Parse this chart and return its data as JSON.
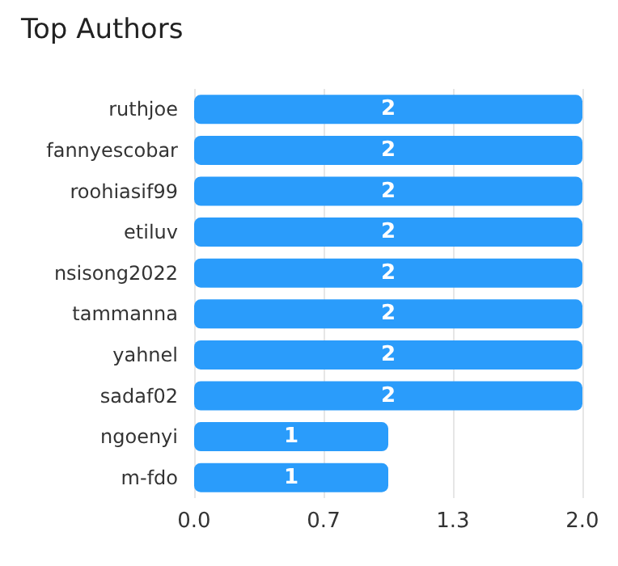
{
  "chart_data": {
    "type": "bar",
    "orientation": "horizontal",
    "title": "Top Authors",
    "categories": [
      "ruthjoe",
      "fannyescobar",
      "roohiasif99",
      "etiluv",
      "nsisong2022",
      "tammanna",
      "yahnel",
      "sadaf02",
      "ngoenyi",
      "m-fdo"
    ],
    "values": [
      2,
      2,
      2,
      2,
      2,
      2,
      2,
      2,
      1,
      1
    ],
    "color": "#2a9cfb",
    "data_labels": true,
    "xlim": [
      0,
      2
    ],
    "xticks": [
      {
        "value": 0,
        "label": "0.0"
      },
      {
        "value": 0.6667,
        "label": "0.7"
      },
      {
        "value": 1.3333,
        "label": "1.3"
      },
      {
        "value": 2,
        "label": "2.0"
      }
    ],
    "grid": "x"
  }
}
